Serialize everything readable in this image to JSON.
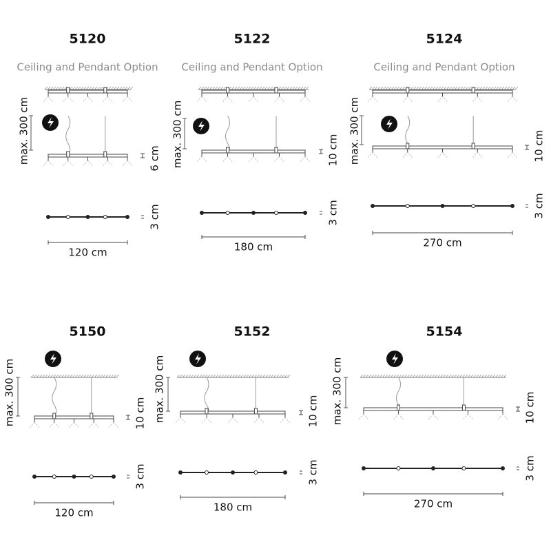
{
  "panels": [
    {
      "model": "5120",
      "subtitle": "Ceiling and Pendant Option",
      "max_height": "max. 300 cm",
      "height": "6 cm",
      "depth": "3 cm",
      "width": "120 cm"
    },
    {
      "model": "5122",
      "subtitle": "Ceiling and Pendant Option",
      "max_height": "max. 300 cm",
      "height": "10 cm",
      "depth": "3 cm",
      "width": "180 cm"
    },
    {
      "model": "5124",
      "subtitle": "Ceiling and Pendant Option",
      "max_height": "max. 300 cm",
      "height": "10 cm",
      "depth": "3 cm",
      "width": "270 cm"
    },
    {
      "model": "5150",
      "max_height": "max. 300 cm",
      "height": "10 cm",
      "depth": "3 cm",
      "width": "120 cm"
    },
    {
      "model": "5152",
      "max_height": "max. 300 cm",
      "height": "10 cm",
      "depth": "3 cm",
      "width": "180 cm"
    },
    {
      "model": "5154",
      "max_height": "max. 300 cm",
      "height": "10 cm",
      "depth": "3 cm",
      "width": "270 cm"
    }
  ]
}
